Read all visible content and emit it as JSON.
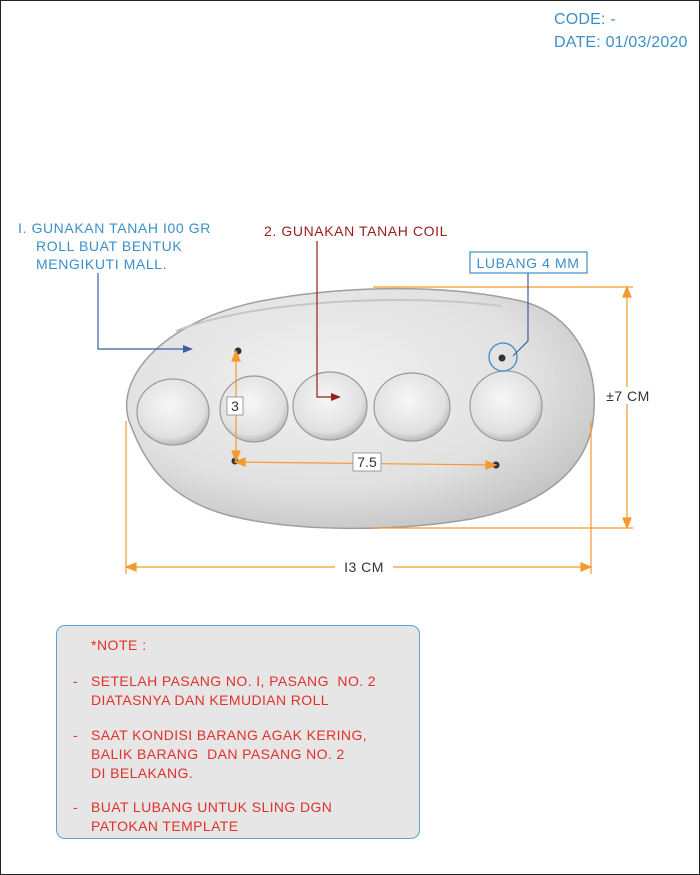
{
  "header": {
    "code_line": "CODE: -",
    "date_line": "DATE: 01/03/2020"
  },
  "annotations": {
    "step1_lines": [
      "I. GUNAKAN TANAH I00 GR",
      "ROLL BUAT BENTUK",
      "MENGIKUTI MALL."
    ],
    "step2": "2. GUNAKAN  TANAH COIL",
    "hole": "LUBANG 4 MM"
  },
  "dimensions": {
    "width": "I3 CM",
    "height": "±7 CM",
    "hole_spacing": "7.5",
    "hole_offset": "3"
  },
  "note": {
    "title": "*NOTE :",
    "items": [
      {
        "dash": "-",
        "lines": [
          "SETELAH PASANG NO. I, PASANG  NO. 2",
          "DIATASNYA DAN KEMUDIAN ROLL"
        ]
      },
      {
        "dash": "-",
        "lines": [
          "SAAT KONDISI BARANG AGAK KERING,",
          "BALIK BARANG  DAN PASANG NO. 2",
          "DI BELAKANG."
        ]
      },
      {
        "dash": "-",
        "lines": [
          "BUAT LUBANG UNTUK SLING DGN",
          "PATOKAN TEMPLATE"
        ]
      }
    ]
  },
  "colors": {
    "blue": "#3b8fc9",
    "red": "#e0312b",
    "dark_red": "#9b1c1c",
    "orange": "#f59a2e"
  }
}
